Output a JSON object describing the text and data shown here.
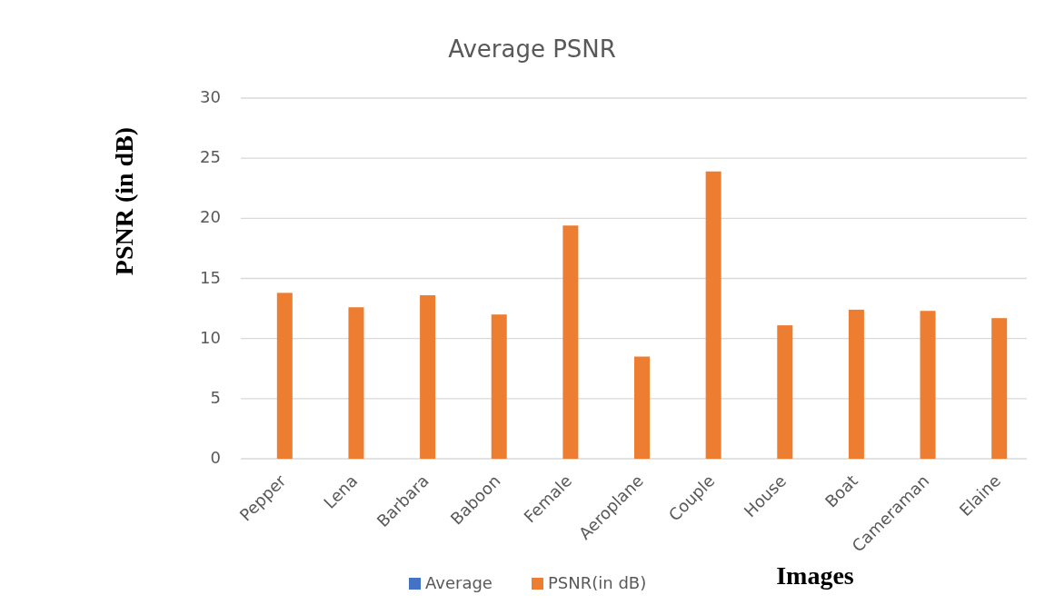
{
  "chart_data": {
    "type": "bar",
    "title": "Average PSNR",
    "xlabel": "Images",
    "ylabel": "PSNR (in dB)",
    "categories": [
      "Pepper",
      "Lena",
      "Barbara",
      "Baboon",
      "Female",
      "Aeroplane",
      "Couple",
      "House",
      "Boat",
      "Cameraman",
      "Elaine"
    ],
    "series": [
      {
        "name": "Average",
        "color": "#4472c4",
        "values": [
          null,
          null,
          null,
          null,
          null,
          null,
          null,
          null,
          null,
          null,
          null
        ]
      },
      {
        "name": "PSNR(in dB)",
        "color": "#ed7d31",
        "values": [
          13.8,
          12.6,
          13.6,
          12.0,
          19.4,
          8.5,
          23.9,
          11.1,
          12.4,
          12.3,
          11.7
        ]
      }
    ],
    "ylim": [
      0,
      30
    ],
    "yticks": [
      0,
      5,
      10,
      15,
      20,
      25,
      30
    ],
    "grid": "y",
    "legend": "bottom"
  }
}
